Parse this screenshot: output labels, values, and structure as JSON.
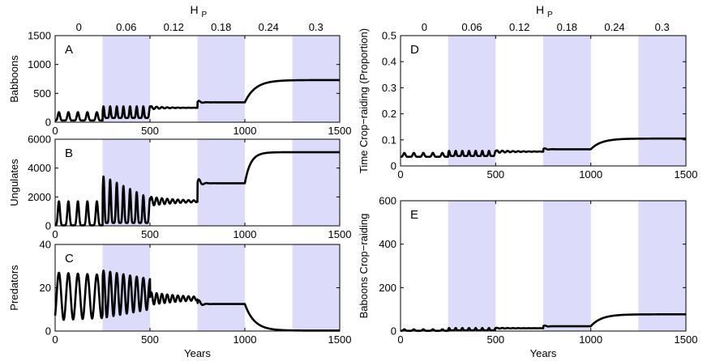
{
  "chart_data": [
    {
      "id": "A",
      "type": "line",
      "panel_letter": "A",
      "ylabel": "Babboons",
      "xlabel": "",
      "xlim": [
        0,
        1500
      ],
      "ylim": [
        0,
        1500
      ],
      "xticks": [
        0,
        500,
        1000,
        1500
      ],
      "yticks": [
        0,
        500,
        1000,
        1500
      ],
      "top_axis_label": "H",
      "top_axis_label_sub": "P",
      "hp_values": [
        "0",
        "0.06",
        "0.12",
        "0.18",
        "0.24",
        "0.3"
      ],
      "shaded_regions": [
        [
          250,
          500
        ],
        [
          750,
          1000
        ],
        [
          1250,
          1500
        ]
      ],
      "series": [
        {
          "name": "Babboons",
          "segments": [
            {
              "x0": 0,
              "x1": 250,
              "kind": "osc",
              "base": 30,
              "peak": 175,
              "period": 50,
              "phase": 20
            },
            {
              "x0": 250,
              "x1": 500,
              "kind": "osc",
              "base": 75,
              "peak": 275,
              "period": 35,
              "phase": 10
            },
            {
              "x0": 500,
              "x1": 750,
              "kind": "damp",
              "mean": 250,
              "amp": 30,
              "period": 28,
              "decay": 70
            },
            {
              "x0": 750,
              "x1": 1000,
              "kind": "damp",
              "mean": 345,
              "amp": 45,
              "period": 40,
              "decay": 15
            },
            {
              "x0": 1000,
              "x1": 1500,
              "kind": "rise",
              "from": 345,
              "to": 730,
              "tau": 55
            }
          ]
        }
      ]
    },
    {
      "id": "B",
      "type": "line",
      "panel_letter": "B",
      "ylabel": "Ungulates",
      "xlabel": "",
      "xlim": [
        0,
        1500
      ],
      "ylim": [
        0,
        6000
      ],
      "xticks": [
        0,
        500,
        1000,
        1500
      ],
      "yticks": [
        0,
        2000,
        4000,
        6000
      ],
      "shaded_regions": [
        [
          250,
          500
        ],
        [
          750,
          1000
        ],
        [
          1250,
          1500
        ]
      ],
      "series": [
        {
          "name": "Ungulates",
          "segments": [
            {
              "x0": 0,
              "x1": 250,
              "kind": "osc",
              "base": 30,
              "peak": 1700,
              "period": 50,
              "phase": 20
            },
            {
              "x0": 250,
              "x1": 500,
              "kind": "oscdecay",
              "base": 200,
              "peak": 3450,
              "peak_end": 1900,
              "period": 35,
              "phase": 10
            },
            {
              "x0": 500,
              "x1": 750,
              "kind": "damp",
              "mean": 1700,
              "amp": 320,
              "period": 28,
              "decay": 150
            },
            {
              "x0": 750,
              "x1": 1000,
              "kind": "damp",
              "mean": 2950,
              "amp": 500,
              "period": 40,
              "decay": 15
            },
            {
              "x0": 1000,
              "x1": 1500,
              "kind": "rise",
              "from": 2950,
              "to": 5100,
              "tau": 30
            }
          ]
        }
      ]
    },
    {
      "id": "C",
      "type": "line",
      "panel_letter": "C",
      "ylabel": "Predators",
      "xlabel": "Years",
      "xlim": [
        0,
        1500
      ],
      "ylim": [
        0,
        40
      ],
      "xticks": [
        0,
        500,
        1000,
        1500
      ],
      "yticks": [
        0,
        20,
        40
      ],
      "shaded_regions": [
        [
          250,
          500
        ],
        [
          750,
          1000
        ],
        [
          1250,
          1500
        ]
      ],
      "series": [
        {
          "name": "Predators",
          "segments": [
            {
              "x0": 0,
              "x1": 250,
              "kind": "sine",
              "mean": 16,
              "amp": 11,
              "amp_end": 10,
              "period": 50,
              "phase": 20
            },
            {
              "x0": 250,
              "x1": 500,
              "kind": "sine",
              "mean": 17,
              "amp": 11,
              "amp_end": 7,
              "period": 35,
              "phase": 10
            },
            {
              "x0": 500,
              "x1": 750,
              "kind": "damp",
              "mean": 15,
              "amp": 3,
              "period": 28,
              "decay": 200
            },
            {
              "x0": 750,
              "x1": 1000,
              "kind": "damp",
              "mean": 12.5,
              "amp": 3,
              "period": 40,
              "decay": 15
            },
            {
              "x0": 1000,
              "x1": 1500,
              "kind": "rise",
              "from": 12.5,
              "to": 0.2,
              "tau": 50
            }
          ]
        }
      ]
    },
    {
      "id": "D",
      "type": "line",
      "panel_letter": "D",
      "ylabel": "Time Crop−raiding (Proportion)",
      "xlabel": "",
      "xlim": [
        0,
        1500
      ],
      "ylim": [
        0,
        0.5
      ],
      "xticks": [
        0,
        500,
        1000,
        1500
      ],
      "yticks": [
        0,
        0.1,
        0.2,
        0.3,
        0.4,
        0.5
      ],
      "top_axis_label": "H",
      "top_axis_label_sub": "P",
      "hp_values": [
        "0",
        "0.06",
        "0.12",
        "0.18",
        "0.24",
        "0.3"
      ],
      "shaded_regions": [
        [
          250,
          500
        ],
        [
          750,
          1000
        ],
        [
          1250,
          1500
        ]
      ],
      "series": [
        {
          "name": "Time Crop-raiding",
          "segments": [
            {
              "x0": 0,
              "x1": 250,
              "kind": "osc",
              "base": 0.035,
              "peak": 0.05,
              "period": 50,
              "phase": 20
            },
            {
              "x0": 250,
              "x1": 500,
              "kind": "osc",
              "base": 0.038,
              "peak": 0.058,
              "period": 35,
              "phase": 10
            },
            {
              "x0": 500,
              "x1": 750,
              "kind": "damp",
              "mean": 0.055,
              "amp": 0.005,
              "period": 28,
              "decay": 100
            },
            {
              "x0": 750,
              "x1": 1000,
              "kind": "damp",
              "mean": 0.064,
              "amp": 0.006,
              "period": 40,
              "decay": 15
            },
            {
              "x0": 1000,
              "x1": 1500,
              "kind": "rise",
              "from": 0.064,
              "to": 0.105,
              "tau": 55
            }
          ]
        }
      ]
    },
    {
      "id": "E",
      "type": "line",
      "panel_letter": "E",
      "ylabel": "Baboons Crop−raiding",
      "xlabel": "Years",
      "xlim": [
        0,
        1500
      ],
      "ylim": [
        0,
        600
      ],
      "xticks": [
        0,
        500,
        1000,
        1500
      ],
      "yticks": [
        0,
        200,
        400,
        600
      ],
      "shaded_regions": [
        [
          250,
          500
        ],
        [
          750,
          1000
        ],
        [
          1250,
          1500
        ]
      ],
      "series": [
        {
          "name": "Baboons Crop-raiding",
          "segments": [
            {
              "x0": 0,
              "x1": 250,
              "kind": "osc",
              "base": 1,
              "peak": 8,
              "period": 50,
              "phase": 20
            },
            {
              "x0": 250,
              "x1": 500,
              "kind": "osc",
              "base": 3,
              "peak": 14,
              "period": 35,
              "phase": 10
            },
            {
              "x0": 500,
              "x1": 750,
              "kind": "damp",
              "mean": 13,
              "amp": 2,
              "period": 28,
              "decay": 100
            },
            {
              "x0": 750,
              "x1": 1000,
              "kind": "damp",
              "mean": 22,
              "amp": 6,
              "period": 40,
              "decay": 15
            },
            {
              "x0": 1000,
              "x1": 1500,
              "kind": "rise",
              "from": 22,
              "to": 77,
              "tau": 55
            }
          ]
        }
      ]
    }
  ]
}
